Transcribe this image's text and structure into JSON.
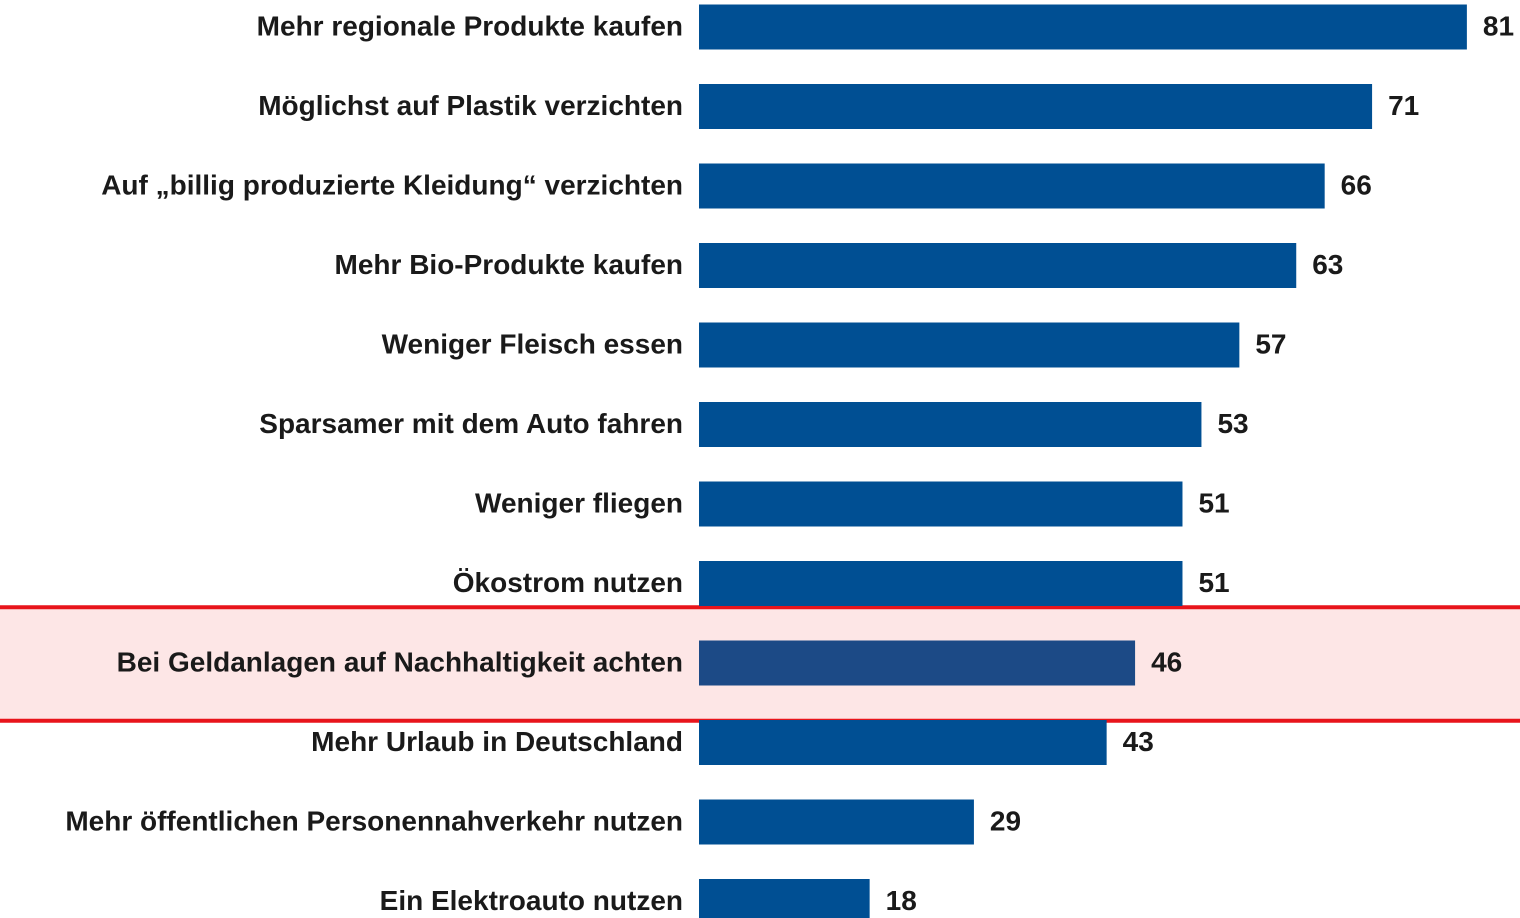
{
  "chart_data": {
    "type": "barh",
    "categories": [
      "Mehr regionale Produkte kaufen",
      "Möglichst auf Plastik verzichten",
      "Auf „billig produzierte Kleidung“ verzichten",
      "Mehr Bio-Produkte kaufen",
      "Weniger Fleisch essen",
      "Sparsamer mit dem Auto fahren",
      "Weniger fliegen",
      "Ökostrom nutzen",
      "Bei Geldanlagen auf Nachhaltigkeit achten",
      "Mehr Urlaub in Deutschland",
      "Mehr öffentlichen Personennahverkehr nutzen",
      "Ein Elektroauto nutzen"
    ],
    "values": [
      81,
      71,
      66,
      63,
      57,
      53,
      51,
      51,
      46,
      43,
      29,
      18
    ],
    "color": "#004f93",
    "highlight": 8,
    "highlight_color": "#1c4a86",
    "highlight_band_color": "#fde6e6",
    "highlight_border_color": "#e8141b"
  }
}
